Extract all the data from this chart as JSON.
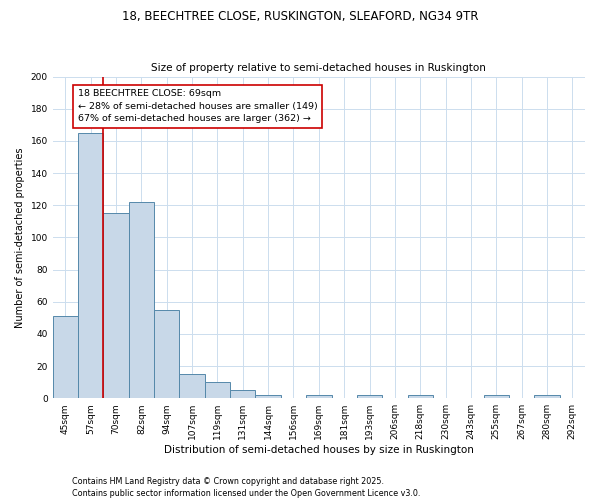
{
  "title_line1": "18, BEECHTREE CLOSE, RUSKINGTON, SLEAFORD, NG34 9TR",
  "title_line2": "Size of property relative to semi-detached houses in Ruskington",
  "xlabel": "Distribution of semi-detached houses by size in Ruskington",
  "ylabel": "Number of semi-detached properties",
  "categories": [
    "45sqm",
    "57sqm",
    "70sqm",
    "82sqm",
    "94sqm",
    "107sqm",
    "119sqm",
    "131sqm",
    "144sqm",
    "156sqm",
    "169sqm",
    "181sqm",
    "193sqm",
    "206sqm",
    "218sqm",
    "230sqm",
    "243sqm",
    "255sqm",
    "267sqm",
    "280sqm",
    "292sqm"
  ],
  "values": [
    51,
    165,
    115,
    122,
    55,
    15,
    10,
    5,
    2,
    0,
    2,
    0,
    2,
    0,
    2,
    0,
    0,
    2,
    0,
    2,
    0
  ],
  "bar_color": "#c8d8e8",
  "bar_edge_color": "#5588aa",
  "highlight_line_index": 2,
  "highlight_line_color": "#cc0000",
  "annotation_text": "18 BEECHTREE CLOSE: 69sqm\n← 28% of semi-detached houses are smaller (149)\n67% of semi-detached houses are larger (362) →",
  "annotation_box_color": "#ffffff",
  "annotation_box_edge_color": "#cc0000",
  "ylim": [
    0,
    200
  ],
  "yticks": [
    0,
    20,
    40,
    60,
    80,
    100,
    120,
    140,
    160,
    180,
    200
  ],
  "footnote_line1": "Contains HM Land Registry data © Crown copyright and database right 2025.",
  "footnote_line2": "Contains public sector information licensed under the Open Government Licence v3.0.",
  "background_color": "#ffffff",
  "grid_color": "#ccddee",
  "title_fontsize": 8.5,
  "subtitle_fontsize": 7.5,
  "xlabel_fontsize": 7.5,
  "ylabel_fontsize": 7.0,
  "tick_fontsize": 6.5,
  "annotation_fontsize": 6.8,
  "footnote_fontsize": 5.8
}
